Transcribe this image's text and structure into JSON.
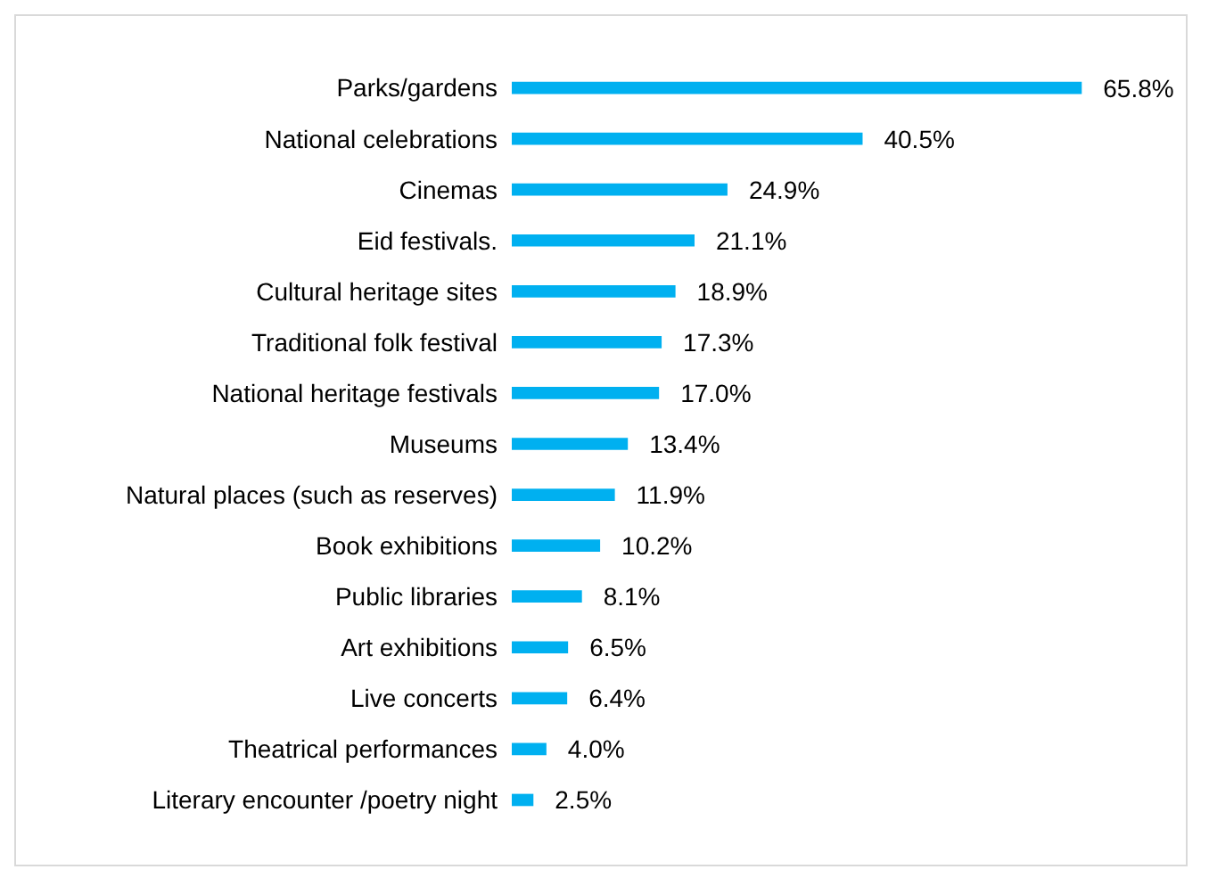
{
  "chart_data": {
    "type": "bar",
    "orientation": "horizontal",
    "color": "#00b0f0",
    "categories": [
      "Parks/gardens",
      "National celebrations",
      "Cinemas",
      "Eid festivals.",
      "Cultural heritage sites",
      "Traditional folk festival",
      "National heritage festivals",
      "Museums",
      "Natural places (such as reserves)",
      "Book exhibitions",
      "Public libraries",
      "Art exhibitions",
      "Live concerts",
      "Theatrical performances",
      "Literary encounter /poetry night"
    ],
    "values": [
      65.8,
      40.5,
      24.9,
      21.1,
      18.9,
      17.3,
      17.0,
      13.4,
      11.9,
      10.2,
      8.1,
      6.5,
      6.4,
      4.0,
      2.5
    ],
    "value_labels": [
      "65.8%",
      "40.5%",
      "24.9%",
      "21.1%",
      "18.9%",
      "17.3%",
      "17.0%",
      "13.4%",
      "11.9%",
      "10.2%",
      "8.1%",
      "6.5%",
      "6.4%",
      "4.0%",
      "2.5%"
    ],
    "grid": false,
    "legend": false
  }
}
